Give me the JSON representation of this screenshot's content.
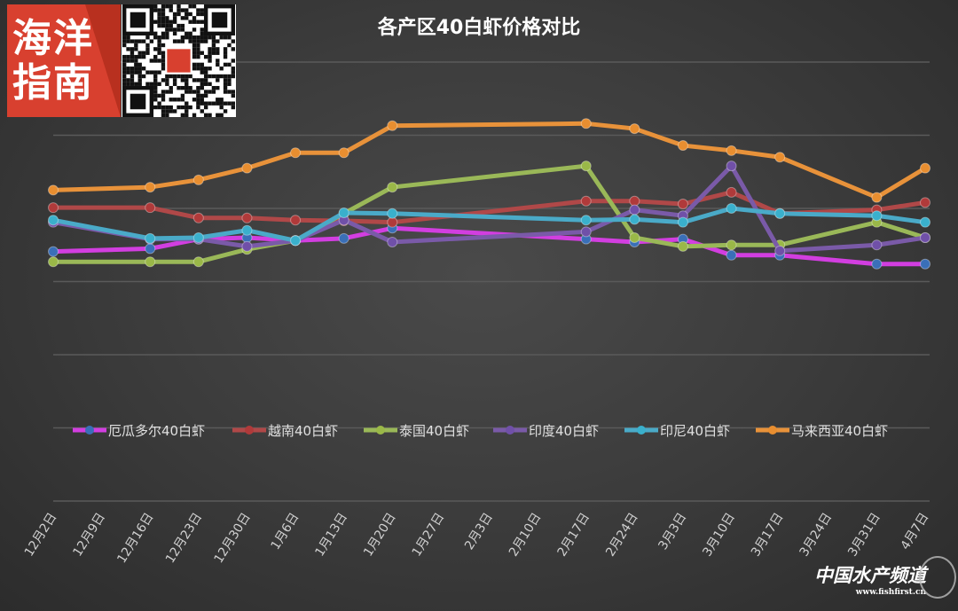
{
  "logo": {
    "text": "海洋指南",
    "qr_code": "qr-code"
  },
  "watermark": {
    "name": "中国水产频道",
    "url": "www.fishfirst.cn"
  },
  "chart_data": {
    "type": "line",
    "title": "各产区40白虾价格对比",
    "xlabel": "",
    "ylabel": "",
    "ylim": [
      0,
      6
    ],
    "y_ticks_printed": false,
    "grid": true,
    "legend_placement": "lower-middle",
    "categories": [
      "12月2日",
      "12月9日",
      "12月16日",
      "12月23日",
      "12月30日",
      "1月6日",
      "1月13日",
      "1月20日",
      "1月27日",
      "2月3日",
      "2月10日",
      "2月17日",
      "2月24日",
      "3月3日",
      "3月10日",
      "3月17日",
      "3月24日",
      "3月31日",
      "4月7日"
    ],
    "series": [
      {
        "name": "厄瓜多尔40白虾",
        "color": "#d23ee0",
        "marker_color": "#3a6fb8",
        "values": [
          3.41,
          null,
          3.45,
          3.58,
          3.6,
          3.56,
          3.59,
          3.73,
          null,
          null,
          null,
          3.58,
          3.54,
          3.58,
          3.36,
          3.36,
          null,
          3.24,
          3.24
        ]
      },
      {
        "name": "越南40白虾",
        "color": "#b04848",
        "marker_color": "#b03a3a",
        "values": [
          4.01,
          null,
          4.01,
          3.87,
          3.87,
          3.84,
          3.83,
          3.81,
          null,
          null,
          null,
          4.1,
          4.1,
          4.06,
          4.22,
          3.93,
          null,
          3.98,
          4.08
        ]
      },
      {
        "name": "泰国40白虾",
        "color": "#9ab858",
        "marker_color": "#9ab848",
        "values": [
          3.27,
          null,
          3.27,
          3.27,
          3.44,
          3.56,
          3.93,
          4.29,
          null,
          null,
          null,
          4.58,
          3.6,
          3.48,
          3.5,
          3.5,
          null,
          3.81,
          3.6
        ]
      },
      {
        "name": "印度40白虾",
        "color": "#7a5aa8",
        "marker_color": "#7050a8",
        "values": [
          3.81,
          null,
          3.58,
          3.58,
          3.48,
          3.56,
          3.84,
          3.54,
          null,
          null,
          null,
          3.68,
          3.98,
          3.9,
          4.58,
          3.42,
          null,
          3.5,
          3.6
        ]
      },
      {
        "name": "印尼40白虾",
        "color": "#4aaac8",
        "marker_color": "#3ab0cc",
        "values": [
          3.84,
          null,
          3.59,
          3.6,
          3.7,
          3.56,
          3.94,
          3.93,
          null,
          null,
          null,
          3.84,
          3.85,
          3.81,
          4.0,
          3.93,
          null,
          3.9,
          3.81
        ]
      },
      {
        "name": "马来西亚40白虾",
        "color": "#e8923a",
        "marker_color": "#e88e30",
        "values": [
          4.25,
          null,
          4.29,
          4.39,
          4.55,
          4.76,
          4.76,
          5.13,
          null,
          null,
          null,
          5.16,
          5.09,
          4.86,
          4.79,
          4.7,
          null,
          4.15,
          4.55
        ]
      }
    ]
  }
}
